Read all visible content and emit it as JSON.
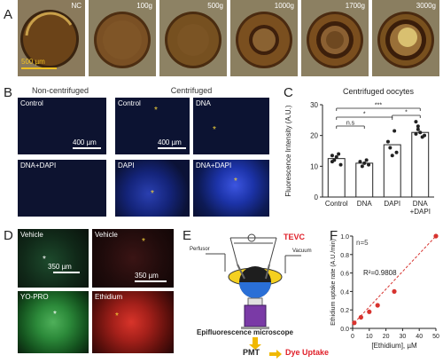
{
  "panels": {
    "A": "A",
    "B": "B",
    "C": "C",
    "D": "D",
    "E": "E",
    "F": "F"
  },
  "panelA": {
    "labels": [
      "NC",
      "100g",
      "500g",
      "1000g",
      "1700g",
      "3000g"
    ],
    "scale": "500 µm"
  },
  "panelB": {
    "header_left": "Non-centrifuged",
    "header_right": "Centrifuged",
    "tiles": [
      "Control",
      "Control",
      "DNA",
      "DNA+DAPI",
      "DAPI",
      "DNA+DAPI"
    ],
    "scale1": "400 µm",
    "scale2": "400 µm"
  },
  "panelD": {
    "tiles": [
      "Vehicle",
      "Vehicle",
      "YO-PRO",
      "Ethidium"
    ],
    "scale1": "350 µm",
    "scale2": "350 µm"
  },
  "panelE": {
    "tevc": "TEVC",
    "perfusor": "Perfusor",
    "vacuum": "Vacuum",
    "microscope": "Epifluorescence microscope",
    "pmt": "PMT",
    "dye_uptake": "Dye Uptake",
    "colors": {
      "tevc": "#e0202a",
      "dye": "#e0202a",
      "arrow": "#f0b800"
    }
  },
  "chart_data": [
    {
      "type": "bar",
      "title": "Centrifuged oocytes",
      "ylabel": "Fluorescence Intensity (A.U.)",
      "categories": [
        "Control",
        "DNA",
        "DAPI",
        "DNA\n+DAPI"
      ],
      "category_lines": [
        [
          "Control"
        ],
        [
          "DNA"
        ],
        [
          "DAPI"
        ],
        [
          "DNA",
          "+DAPI"
        ]
      ],
      "values": [
        12.5,
        11.0,
        17.0,
        21.0
      ],
      "points": [
        [
          13.5,
          12.0,
          13.0,
          14.0,
          10.5,
          11.5
        ],
        [
          11.5,
          10.0,
          11.0,
          12.0,
          10.5
        ],
        [
          18.0,
          16.0,
          13.5,
          21.5,
          14.5
        ],
        [
          24.5,
          22.0,
          21.0,
          19.5,
          20.0,
          20.5,
          23.0
        ]
      ],
      "ylim": [
        0,
        30
      ],
      "yticks": [
        0,
        10,
        20,
        30
      ],
      "significance": [
        {
          "from": 0,
          "to": 1,
          "label": "n.s"
        },
        {
          "from": 0,
          "to": 2,
          "label": "*"
        },
        {
          "from": 0,
          "to": 3,
          "label": "***"
        },
        {
          "from": 2,
          "to": 3,
          "label": "*"
        }
      ],
      "bar_color": "#ffffff",
      "point_color": "#222222"
    },
    {
      "type": "scatter",
      "annotation_n": "n=5",
      "annotation_r2": "R²=0.9808",
      "xlabel": "[Ethidium], µM",
      "ylabel": "Ethidium uptake rate (A.U./min)",
      "x": [
        1,
        5,
        10,
        15,
        25,
        50
      ],
      "y": [
        0.06,
        0.12,
        0.18,
        0.25,
        0.4,
        1.0
      ],
      "xlim": [
        0,
        50
      ],
      "ylim": [
        0,
        1.0
      ],
      "xticks": [
        0,
        10,
        20,
        30,
        40,
        50
      ],
      "yticks": [
        0.0,
        0.2,
        0.4,
        0.6,
        0.8,
        1.0
      ],
      "ytick_labels": [
        "0.0",
        "0.2",
        "0.4",
        "0.6",
        "0.8",
        "1.0"
      ],
      "point_color": "#d7332f",
      "fit_color": "#d7332f"
    }
  ]
}
